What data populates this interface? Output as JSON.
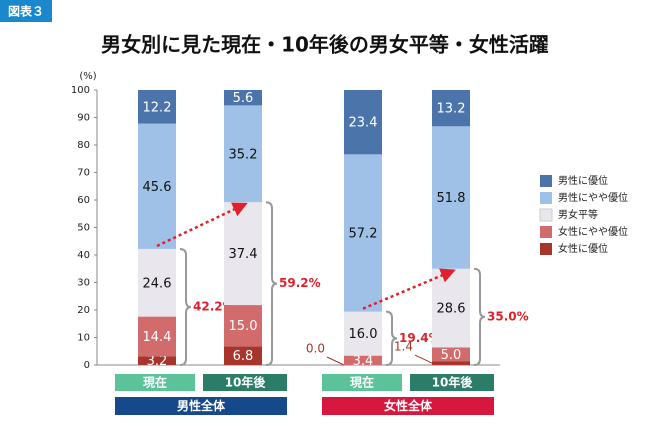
{
  "badge": "図表３",
  "chart_data": {
    "type": "stacked-bar",
    "title": "男女別に見た現在・10年後の男女平等・女性活躍",
    "y_unit": "(%)",
    "categories": [
      "現在",
      "10年後",
      "現在",
      "10年後"
    ],
    "groups": [
      {
        "name": "男性全体",
        "color": "#16498a"
      },
      {
        "name": "女性全体",
        "color": "#d8173f"
      }
    ],
    "category_colors": [
      "#5cc29a",
      "#2c7d68",
      "#5cc29a",
      "#2c7d68"
    ],
    "ylim": [
      0,
      100
    ],
    "yticks": [
      0,
      10,
      20,
      30,
      40,
      50,
      60,
      70,
      80,
      90,
      100
    ],
    "series": [
      {
        "name": "女性に優位",
        "color": "#a8352b",
        "values": [
          3.2,
          6.8,
          0.0,
          1.4
        ],
        "value_labels": [
          "3.2",
          "6.8",
          "0.0",
          "1.4"
        ]
      },
      {
        "name": "女性にやや優位",
        "color": "#d26b6b",
        "values": [
          14.4,
          15.0,
          3.4,
          5.0
        ],
        "value_labels": [
          "14.4",
          "15.0",
          "3.4",
          "5.0"
        ]
      },
      {
        "name": "男女平等",
        "color": "#e9e7ed",
        "values": [
          24.6,
          37.4,
          16.0,
          28.6
        ],
        "value_labels": [
          "24.6",
          "37.4",
          "16.0",
          "28.6"
        ]
      },
      {
        "name": "男性にやや優位",
        "color": "#9fc1e8",
        "values": [
          45.6,
          35.2,
          57.2,
          51.8
        ],
        "value_labels": [
          "45.6",
          "35.2",
          "57.2",
          "51.8"
        ]
      },
      {
        "name": "男性に優位",
        "color": "#4b75aa",
        "values": [
          12.2,
          5.6,
          23.4,
          13.2
        ],
        "value_labels": [
          "12.2",
          "5.6",
          "23.4",
          "13.2"
        ]
      }
    ],
    "bracket_labels": [
      "42.2%",
      "59.2%",
      "19.4%",
      "35.0%"
    ]
  }
}
